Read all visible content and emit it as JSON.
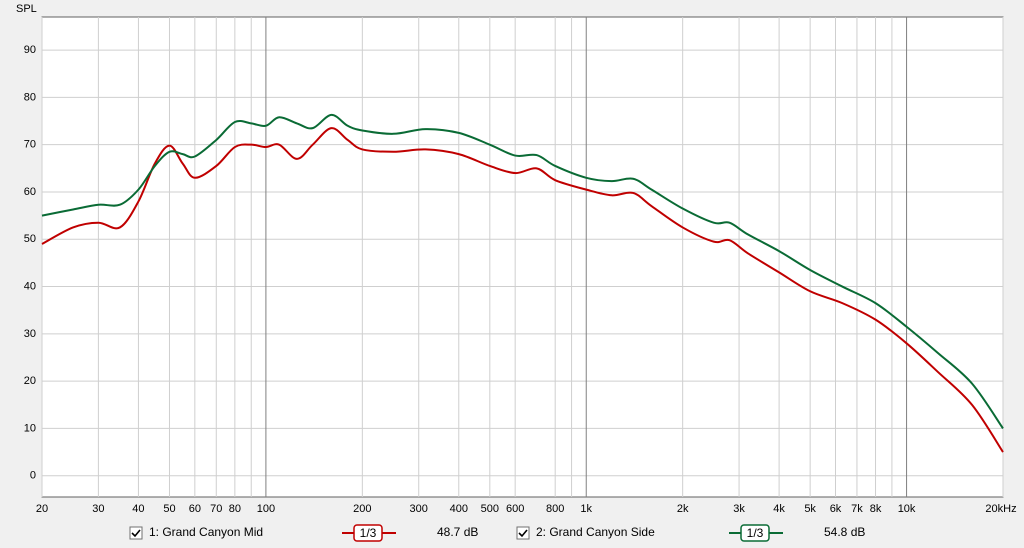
{
  "chart_data": {
    "type": "line",
    "y_label": "SPL",
    "x_log": true,
    "grid": true,
    "xlim": [
      20,
      20000
    ],
    "ylim": [
      -4.5,
      97
    ],
    "xticks": [
      20,
      30,
      40,
      50,
      60,
      70,
      80,
      100,
      200,
      300,
      400,
      500,
      600,
      800,
      {
        "value": 1000,
        "label": "1k"
      },
      {
        "value": 2000,
        "label": "2k"
      },
      {
        "value": 3000,
        "label": "3k"
      },
      {
        "value": 4000,
        "label": "4k"
      },
      {
        "value": 5000,
        "label": "5k"
      },
      {
        "value": 6000,
        "label": "6k"
      },
      {
        "value": 7000,
        "label": "7k"
      },
      {
        "value": 8000,
        "label": "8k"
      },
      {
        "value": 10000,
        "label": "10k"
      },
      {
        "value": 20000,
        "label": "20kHz"
      }
    ],
    "x_minor_ticks": [
      90,
      900,
      9000
    ],
    "yticks": [
      0,
      10,
      20,
      30,
      40,
      50,
      60,
      70,
      80,
      90
    ],
    "x": [
      20,
      25,
      30,
      35,
      40,
      45,
      50,
      55,
      60,
      70,
      80,
      90,
      100,
      110,
      125,
      140,
      160,
      180,
      200,
      250,
      315,
      400,
      500,
      600,
      700,
      800,
      1000,
      1200,
      1400,
      1600,
      2000,
      2500,
      2800,
      3200,
      4000,
      5000,
      6300,
      8000,
      10000,
      12500,
      16000,
      20000
    ],
    "series": [
      {
        "name": "1: Grand Canyon Mid",
        "color": "#c00000",
        "smoothing": "1/3",
        "readout": "48.7 dB",
        "values": [
          49,
          52.5,
          53.5,
          52.5,
          58,
          66,
          69.8,
          66,
          63,
          65.5,
          69.5,
          70,
          69.5,
          70,
          67,
          70,
          73.5,
          71,
          69,
          68.5,
          69,
          68,
          65.5,
          64,
          65,
          62.5,
          60.5,
          59.3,
          59.8,
          57,
          52.5,
          49.5,
          49.8,
          47,
          43,
          39,
          36.5,
          33,
          28,
          22,
          15,
          5
        ]
      },
      {
        "name": "2: Grand Canyon Side",
        "color": "#0a6b35",
        "smoothing": "1/3",
        "readout": "54.8 dB",
        "values": [
          55,
          56.3,
          57.3,
          57.3,
          60.5,
          65.5,
          68.5,
          68,
          67.5,
          71,
          74.8,
          74.5,
          74,
          75.8,
          74.5,
          73.5,
          76.3,
          74,
          73,
          72.3,
          73.3,
          72.5,
          70,
          67.7,
          67.8,
          65.5,
          63,
          62.3,
          62.8,
          60.5,
          56.5,
          53.5,
          53.5,
          51,
          47.5,
          43.5,
          40,
          36.5,
          31.5,
          26,
          19.5,
          10
        ]
      }
    ]
  }
}
